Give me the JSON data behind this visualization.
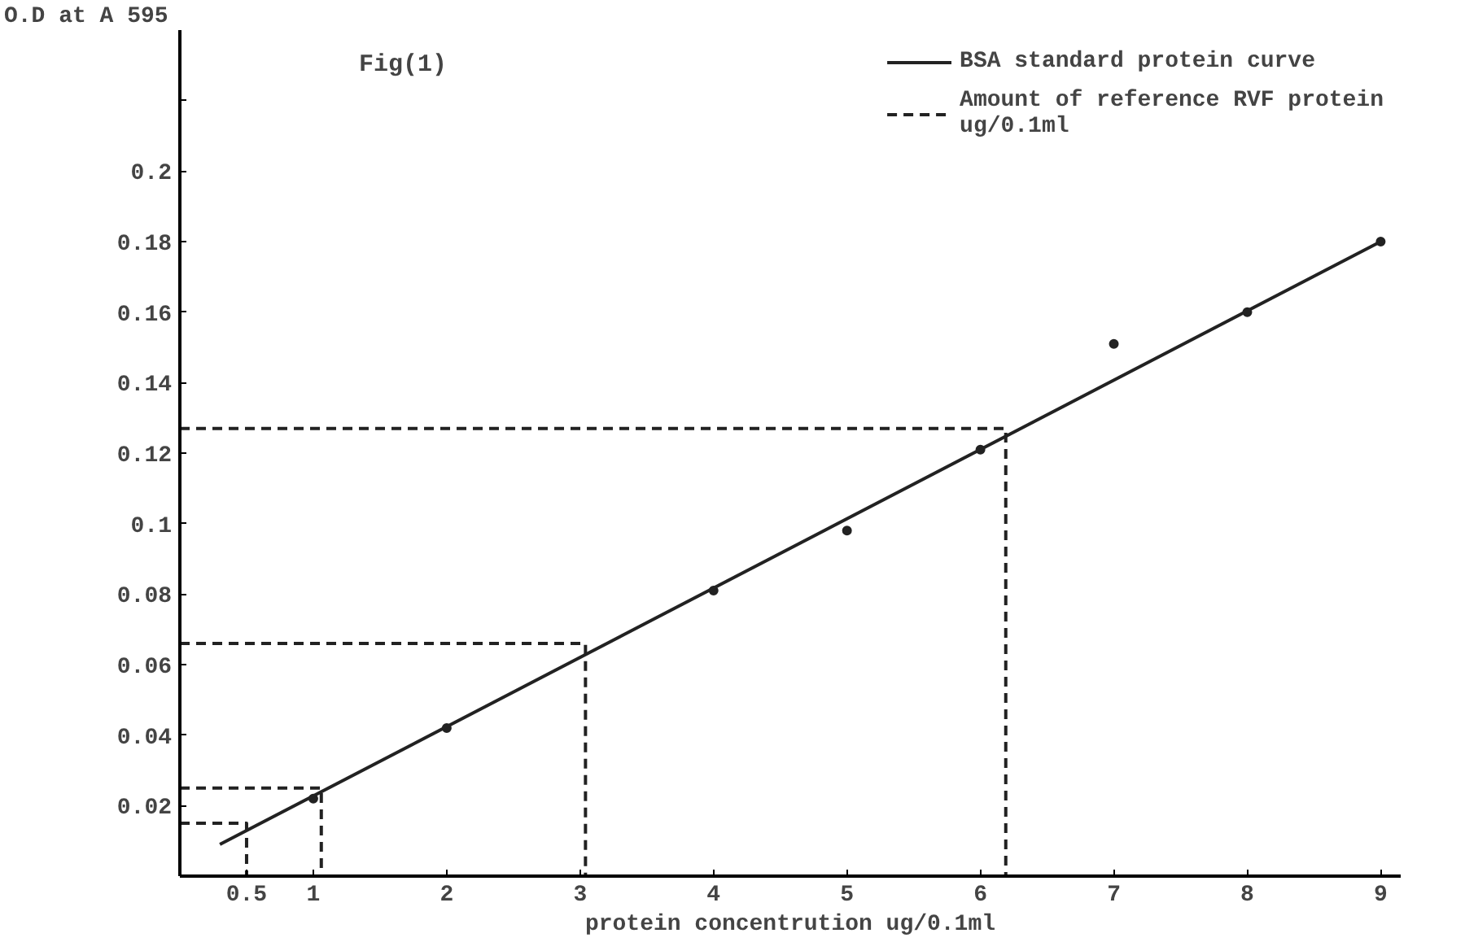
{
  "chart_data": {
    "type": "scatter",
    "xlabel": "protein concentrution ug/0.1ml",
    "ylabel": "O.D at A 595",
    "annotations": [
      "Fig(1)"
    ],
    "xlim": [
      0,
      9.15
    ],
    "ylim": [
      0,
      0.24
    ],
    "xticks": [
      0.5,
      1,
      2,
      3,
      4,
      5,
      6,
      7,
      8,
      9
    ],
    "yticks": [
      0.02,
      0.04,
      0.06,
      0.08,
      0.1,
      0.12,
      0.14,
      0.16,
      0.18,
      0.2,
      {
        "value": 0.22,
        "label": null
      }
    ],
    "grid": false,
    "legend": "top right",
    "series": [
      {
        "marker": "circle",
        "color": "#222222",
        "x": [
          1,
          2,
          4,
          5,
          6,
          7,
          8,
          9
        ],
        "values": [
          0.022,
          0.042,
          0.081,
          0.098,
          0.121,
          0.151,
          0.16,
          0.18
        ]
      },
      {
        "type": "line",
        "name": "BSA standard protein curve",
        "color": "#222222",
        "x": [
          0.3,
          9
        ],
        "values": [
          0.009,
          0.18
        ],
        "line_style": "solid"
      },
      {
        "type": "line",
        "name": "Amount of reference RVF protein\nug/0.1ml",
        "color": "#222222",
        "line_style": "dashed",
        "x": [
          0,
          0.5,
          0.5,
          null,
          0,
          1.06,
          1.06,
          null,
          0,
          3.04,
          3.04,
          null,
          0,
          6.19,
          6.19
        ],
        "values": [
          0.015,
          0.015,
          0,
          null,
          0.025,
          0.025,
          0,
          null,
          0.066,
          0.066,
          0,
          null,
          0.127,
          0.127,
          0
        ]
      }
    ]
  }
}
